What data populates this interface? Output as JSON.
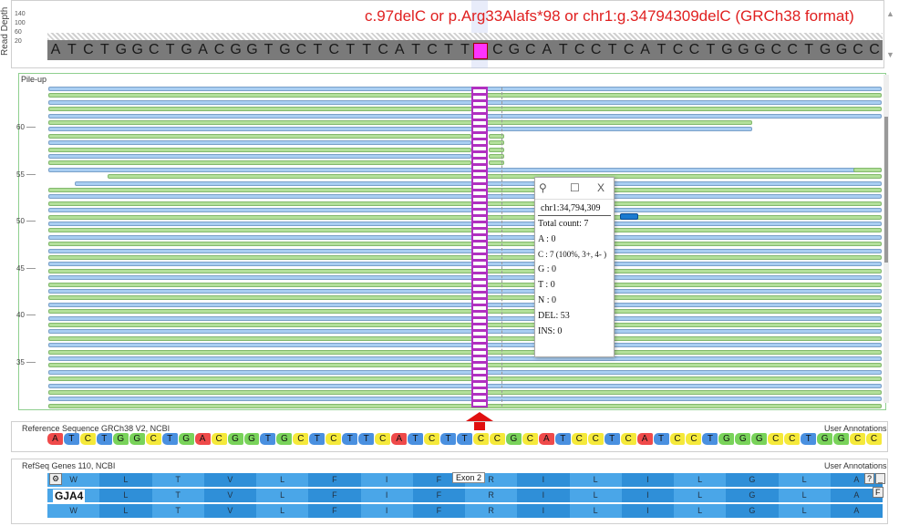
{
  "annotation": {
    "title": "c.97delC or p.Arg33Alafs*98 or chr1:g.34794309delC (GRCh38 format)",
    "title_color": "#e02020"
  },
  "depth_track": {
    "label": "Read Depth",
    "ticks": [
      "140",
      "100",
      "60",
      "20"
    ],
    "reference_bases": [
      "A",
      "T",
      "C",
      "T",
      "G",
      "G",
      "C",
      "T",
      "G",
      "A",
      "C",
      "G",
      "G",
      "T",
      "G",
      "C",
      "T",
      "C",
      "T",
      "T",
      "C",
      "A",
      "T",
      "C",
      "T",
      "T",
      "",
      "C",
      "G",
      "C",
      "A",
      "T",
      "C",
      "C",
      "T",
      "C",
      "A",
      "T",
      "C",
      "C",
      "T",
      "G",
      "G",
      "G",
      "C",
      "C",
      "T",
      "G",
      "G",
      "C",
      "C"
    ]
  },
  "pileup": {
    "label": "Pile-up",
    "ticks": [
      "60",
      "55",
      "50",
      "45",
      "40",
      "35"
    ],
    "read_color_forward": "#a9cef2",
    "read_color_reverse": "#b3e09a",
    "deletion_color": "#b030c0"
  },
  "popup": {
    "position_label": "chr1:34,794,309",
    "rows": [
      "Total count: 7",
      "A : 0",
      "C : 7 (100%, 3+, 4- )",
      "G : 0",
      "T : 0",
      "N : 0",
      "DEL: 53",
      "INS: 0"
    ],
    "buttons": {
      "pin": "⚲",
      "maximize": "☐",
      "close": "X"
    }
  },
  "reference_sequence": {
    "label": "Reference Sequence GRCh38 V2, NCBI",
    "user_annotations": "User Annotations",
    "bases": [
      "A",
      "T",
      "C",
      "T",
      "G",
      "G",
      "C",
      "T",
      "G",
      "A",
      "C",
      "G",
      "G",
      "T",
      "G",
      "C",
      "T",
      "C",
      "T",
      "T",
      "C",
      "A",
      "T",
      "C",
      "T",
      "T",
      "C",
      "C",
      "G",
      "C",
      "A",
      "T",
      "C",
      "C",
      "T",
      "C",
      "A",
      "T",
      "C",
      "C",
      "T",
      "G",
      "G",
      "G",
      "C",
      "C",
      "T",
      "G",
      "G",
      "C",
      "C"
    ]
  },
  "refseq_genes": {
    "label": "RefSeq Genes 110, NCBI",
    "user_annotations": "User Annotations",
    "gene_name": "GJA4",
    "exon_label": "Exon 2",
    "amino_acids": [
      "W",
      "L",
      "T",
      "V",
      "L",
      "F",
      "I",
      "F",
      "R",
      "I",
      "L",
      "I",
      "L",
      "G",
      "L",
      "A"
    ],
    "buttons": {
      "gear": "⚙",
      "help": "?",
      "min": "_",
      "f": "F"
    }
  }
}
